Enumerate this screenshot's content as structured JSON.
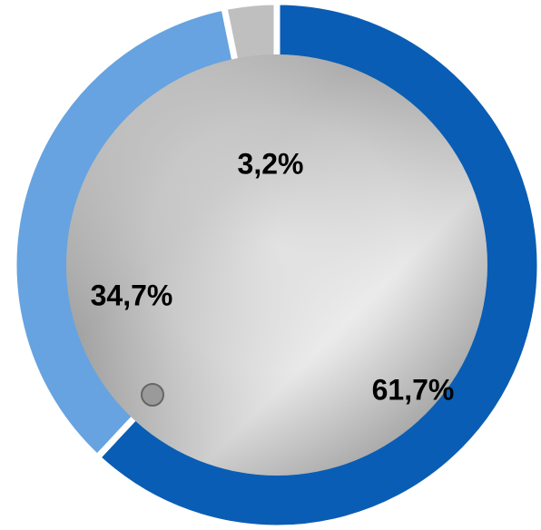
{
  "chart_data": {
    "type": "donut",
    "categories": [
      null,
      null,
      null
    ],
    "values": [
      61.7,
      34.7,
      3.2
    ],
    "value_labels": [
      "61,7%",
      "34,7%",
      "3,2%"
    ],
    "colors": [
      "#0a5db4",
      "#66a3e0",
      "#bfbfbf"
    ]
  }
}
